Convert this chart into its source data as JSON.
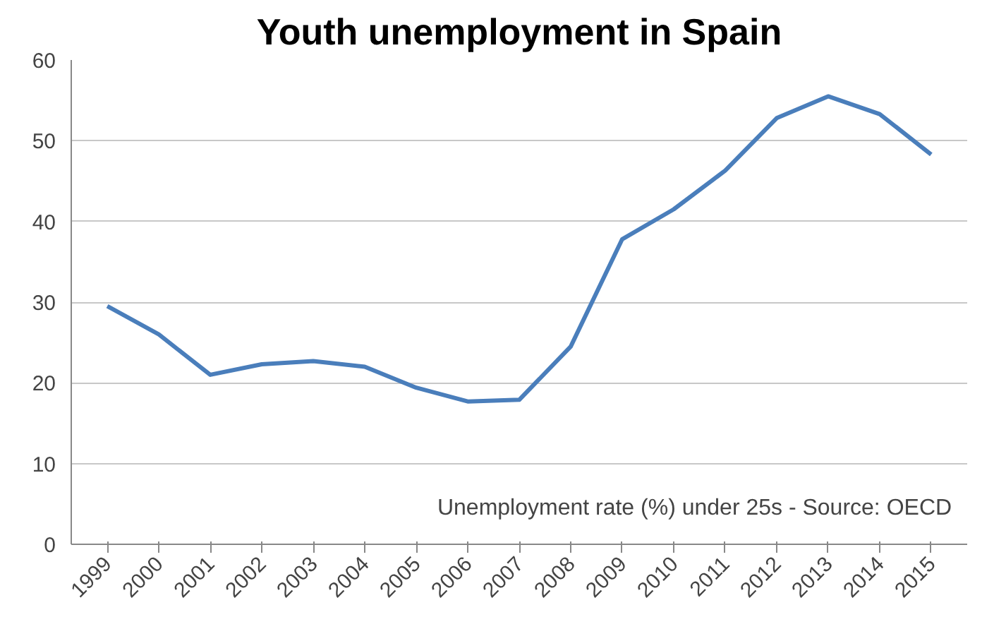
{
  "chart_data": {
    "type": "line",
    "title": "Youth unemployment in Spain",
    "categories": [
      "1999",
      "2000",
      "2001",
      "2002",
      "2003",
      "2004",
      "2005",
      "2006",
      "2007",
      "2008",
      "2009",
      "2010",
      "2011",
      "2012",
      "2013",
      "2014",
      "2015"
    ],
    "series": [
      {
        "color": "#4a7ebb",
        "values": [
          29.5,
          26.0,
          21.0,
          22.3,
          22.7,
          22.0,
          19.4,
          17.7,
          17.9,
          24.5,
          37.8,
          41.5,
          46.3,
          52.8,
          55.5,
          53.3,
          48.3
        ]
      }
    ],
    "ylim": [
      0,
      60
    ],
    "yticks": [
      0,
      10,
      20,
      30,
      40,
      50,
      60
    ],
    "grid": "y",
    "annotations": [
      "Unemployment rate (%) under 25s - Source: OECD"
    ]
  }
}
